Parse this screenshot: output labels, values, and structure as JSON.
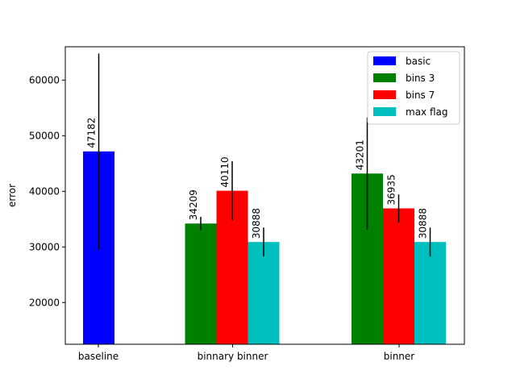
{
  "chart_data": {
    "type": "bar",
    "title": "",
    "xlabel": "",
    "ylabel": "error",
    "ylim": [
      12500,
      66000
    ],
    "yticks": [
      20000,
      30000,
      40000,
      50000,
      60000
    ],
    "categories": [
      "baseline",
      "binnary binner",
      "binner"
    ],
    "legend_position": "top-right",
    "grid": false,
    "series": [
      {
        "name": "basic",
        "color": "#0000ff",
        "values": [
          47182,
          null,
          null
        ],
        "err": [
          17600,
          null,
          null
        ]
      },
      {
        "name": "bins 3",
        "color": "#008000",
        "values": [
          null,
          34209,
          43201
        ],
        "err": [
          null,
          1200,
          10100
        ]
      },
      {
        "name": "bins 7",
        "color": "#ff0000",
        "values": [
          null,
          40110,
          36935
        ],
        "err": [
          null,
          5300,
          2500
        ]
      },
      {
        "name": "max flag",
        "color": "#00bfbf",
        "values": [
          null,
          30888,
          30888
        ],
        "err": [
          null,
          2600,
          2600
        ]
      }
    ],
    "bar_labels": [
      {
        "series": 0,
        "category": 0,
        "text": "47182"
      },
      {
        "series": 1,
        "category": 1,
        "text": "34209"
      },
      {
        "series": 2,
        "category": 1,
        "text": "40110"
      },
      {
        "series": 3,
        "category": 1,
        "text": "30888"
      },
      {
        "series": 1,
        "category": 2,
        "text": "43201"
      },
      {
        "series": 2,
        "category": 2,
        "text": "36935"
      },
      {
        "series": 3,
        "category": 2,
        "text": "30888"
      }
    ]
  }
}
